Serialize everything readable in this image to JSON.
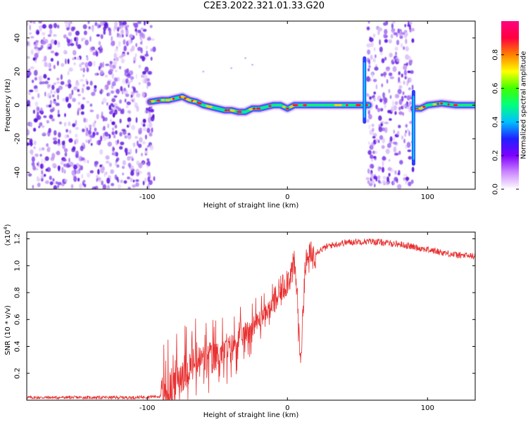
{
  "title": "C2E3.2022.321.01.33.G20",
  "chart_data": [
    {
      "type": "heatmap",
      "xlabel": "Height of straight line (km)",
      "ylabel": "Frequency (Hz)",
      "xlim": [
        -186,
        134
      ],
      "ylim": [
        -50,
        50
      ],
      "xticks": [
        -100,
        0,
        100
      ],
      "yticks": [
        -40,
        -20,
        0,
        20,
        40
      ],
      "colorbar": {
        "label": "Normalized spectral amplitude",
        "range": [
          0,
          1
        ],
        "ticks": [
          "0.0",
          "0.2",
          "0.4",
          "0.6",
          "0.8"
        ],
        "colors": [
          "#ffffff",
          "#cc88ff",
          "#7f00ff",
          "#2020ff",
          "#00c0ff",
          "#00ff80",
          "#40ff00",
          "#ffff00",
          "#ff8000",
          "#ff0040",
          "#ff0080"
        ]
      },
      "noise_regions": [
        {
          "x": [
            -186,
            -95
          ],
          "density": "high"
        },
        {
          "x": [
            57,
            90
          ],
          "density": "high"
        }
      ],
      "ridge": {
        "x": [
          -98,
          -90,
          -85,
          -80,
          -75,
          -70,
          -65,
          -60,
          -55,
          -50,
          -45,
          -40,
          -35,
          -30,
          -25,
          -20,
          -15,
          -10,
          -5,
          0,
          5,
          10,
          20,
          30,
          40,
          50,
          55,
          58,
          90,
          95,
          100,
          110,
          120,
          134
        ],
        "y": [
          2,
          3,
          3,
          4,
          5,
          3,
          2,
          0,
          -1,
          -2,
          -3,
          -3,
          -4,
          -4,
          -2,
          -2,
          -1,
          0,
          0,
          -2,
          0,
          0,
          0,
          0,
          0,
          0,
          0,
          0,
          -2,
          -2,
          0,
          1,
          0,
          0
        ]
      }
    },
    {
      "type": "line",
      "xlabel": "Height of straight line (km)",
      "ylabel": "SNR (10 * v/v)",
      "yscale_label": "(x10",
      "yscale_exp": "4",
      "yscale_close": ")",
      "xlim": [
        -186,
        134
      ],
      "ylim": [
        0.0,
        1.25
      ],
      "xticks": [
        -100,
        0,
        100
      ],
      "yticks": [
        "0.2",
        "0.4",
        "0.6",
        "0.8",
        "1.0",
        "1.2"
      ],
      "color": "#e83030",
      "series": [
        {
          "x": [
            -186,
            -150,
            -110,
            -90,
            -85,
            -80,
            -75,
            -70,
            -65,
            -60,
            -55,
            -50,
            -45,
            -40,
            -35,
            -30,
            -25,
            -20,
            -15,
            -10,
            -5,
            0,
            3,
            5,
            7,
            8,
            9,
            10,
            11,
            12,
            13,
            15,
            20,
            30,
            40,
            50,
            60,
            70,
            80,
            90,
            100,
            110,
            120,
            134
          ],
          "y": [
            0.02,
            0.02,
            0.02,
            0.03,
            0.05,
            0.15,
            0.2,
            0.25,
            0.28,
            0.3,
            0.32,
            0.33,
            0.36,
            0.4,
            0.45,
            0.5,
            0.55,
            0.6,
            0.66,
            0.72,
            0.8,
            0.9,
            0.95,
            1.0,
            0.8,
            0.5,
            0.35,
            0.4,
            0.6,
            0.9,
            1.0,
            1.05,
            1.1,
            1.15,
            1.17,
            1.18,
            1.18,
            1.17,
            1.16,
            1.14,
            1.12,
            1.1,
            1.08,
            1.07
          ]
        }
      ]
    }
  ]
}
